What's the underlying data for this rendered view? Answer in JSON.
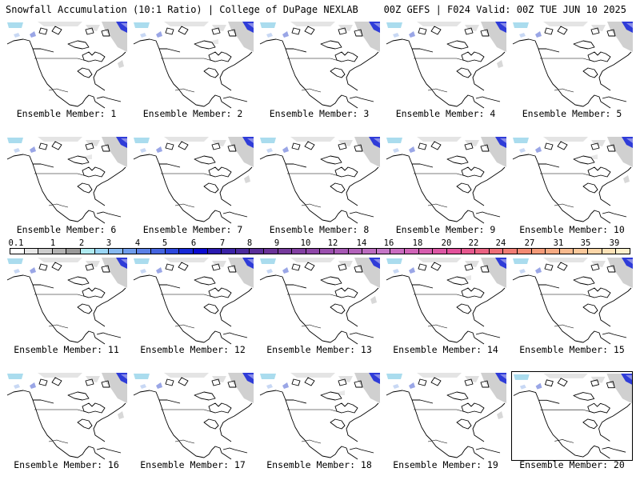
{
  "header": {
    "left": "Snowfall Accumulation (10:1 Ratio) | College of DuPage NEXLAB",
    "right": "00Z GEFS | F024 Valid: 00Z TUE JUN 10 2025"
  },
  "colorbar": {
    "labels": [
      "0.1",
      "1",
      "2",
      "3",
      "4",
      "5",
      "6",
      "7",
      "8",
      "9",
      "10",
      "12",
      "14",
      "16",
      "18",
      "20",
      "22",
      "24",
      "27",
      "31",
      "35",
      "39"
    ],
    "colors": [
      "#ffffff",
      "#e6e6e6",
      "#cccccc",
      "#b3b3b3",
      "#999999",
      "#aeeaf0",
      "#9ad6f5",
      "#86b8f0",
      "#6e9cec",
      "#5a80e6",
      "#4464e0",
      "#2c46dc",
      "#1628d6",
      "#0a0ad0",
      "#2a1ab0",
      "#3a22a6",
      "#4a2a9c",
      "#5a2f9a",
      "#6a3298",
      "#763a9c",
      "#823fa2",
      "#8e46a8",
      "#9a4fae",
      "#a658b4",
      "#b262ba",
      "#bc6bc0",
      "#c476c6",
      "#ca6cc0",
      "#d064b8",
      "#d65cae",
      "#dc56a4",
      "#e2509a",
      "#e6588e",
      "#ea6282",
      "#ee6e78",
      "#f07c74",
      "#f28a72",
      "#f49a78",
      "#f6aa82",
      "#f8ba8e",
      "#fac89a",
      "#fcd6a8",
      "#fde2b6",
      "#fff0cc"
    ]
  },
  "members": [
    {
      "label": "Ensemble Member: 1"
    },
    {
      "label": "Ensemble Member: 2"
    },
    {
      "label": "Ensemble Member: 3"
    },
    {
      "label": "Ensemble Member: 4"
    },
    {
      "label": "Ensemble Member: 5"
    },
    {
      "label": "Ensemble Member: 6"
    },
    {
      "label": "Ensemble Member: 7"
    },
    {
      "label": "Ensemble Member: 8"
    },
    {
      "label": "Ensemble Member: 9"
    },
    {
      "label": "Ensemble Member: 10"
    },
    {
      "label": "Ensemble Member: 11"
    },
    {
      "label": "Ensemble Member: 12"
    },
    {
      "label": "Ensemble Member: 13"
    },
    {
      "label": "Ensemble Member: 14"
    },
    {
      "label": "Ensemble Member: 15"
    },
    {
      "label": "Ensemble Member: 16"
    },
    {
      "label": "Ensemble Member: 17"
    },
    {
      "label": "Ensemble Member: 18"
    },
    {
      "label": "Ensemble Member: 19"
    },
    {
      "label": "Ensemble Member: 20"
    }
  ]
}
